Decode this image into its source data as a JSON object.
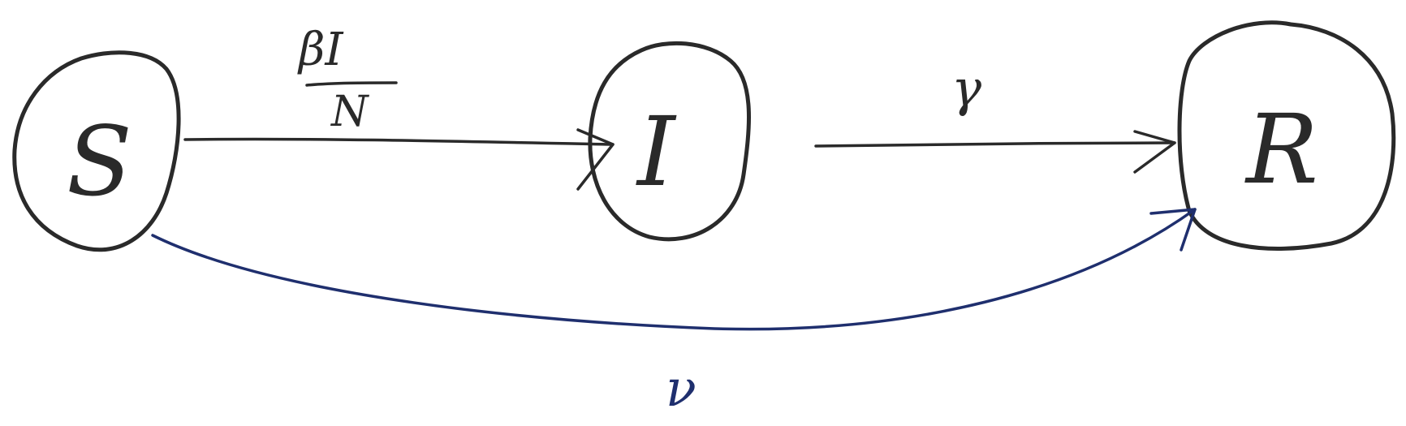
{
  "nodes": {
    "s": {
      "label": "S"
    },
    "i": {
      "label": "I"
    },
    "r": {
      "label": "R"
    }
  },
  "edges": {
    "s_to_i": {
      "numerator": "βI",
      "denominator": "N"
    },
    "i_to_r": {
      "label": "γ"
    },
    "s_to_r": {
      "label": "ν"
    }
  },
  "colors": {
    "ink": "#2a2a2a",
    "vaccination_arrow": "#1f2f6e"
  }
}
